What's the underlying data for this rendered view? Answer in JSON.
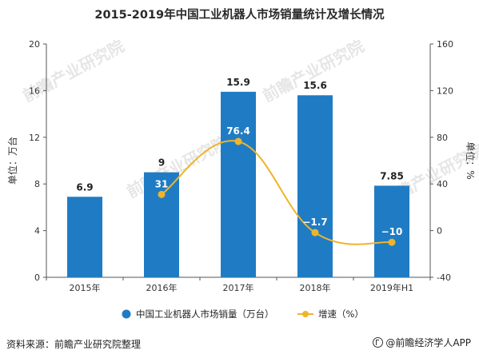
{
  "title": "2015-2019年中国工业机器人市场销量统计及增长情况",
  "source": "资料来源：前瞻产业研究院整理",
  "footer_brand": "@前瞻经济学人APP",
  "watermark": "前瞻产业研究院",
  "colors": {
    "bar": "#1f7cc4",
    "line": "#f0b42a",
    "axis": "#555555",
    "grid": "#d9d9d9"
  },
  "chart_data": {
    "type": "bar",
    "categories": [
      "2015年",
      "2016年",
      "2017年",
      "2018年",
      "2019年H1"
    ],
    "series": [
      {
        "name": "中国工业机器人市场销量（万台）",
        "type": "bar",
        "axis": "left",
        "values": [
          6.9,
          9,
          15.9,
          15.6,
          7.85
        ],
        "labels": [
          "6.9",
          "9",
          "15.9",
          "15.6",
          "7.85"
        ]
      },
      {
        "name": "增速（%）",
        "type": "line",
        "axis": "right",
        "values": [
          null,
          31,
          76.4,
          -1.7,
          -10
        ],
        "labels": [
          "",
          "31",
          "76.4",
          "-1.7",
          "-10"
        ]
      }
    ],
    "ylabel_left": "单位：万台",
    "ylabel_right": "单位：%",
    "ylim_left": [
      0,
      20
    ],
    "ylim_right": [
      -40,
      160
    ],
    "yticks_left": [
      "0",
      "4",
      "8",
      "12",
      "16",
      "20"
    ],
    "yticks_right": [
      "-40",
      "0",
      "40",
      "80",
      "120",
      "160"
    ],
    "legend_position": "bottom",
    "grid": false
  }
}
